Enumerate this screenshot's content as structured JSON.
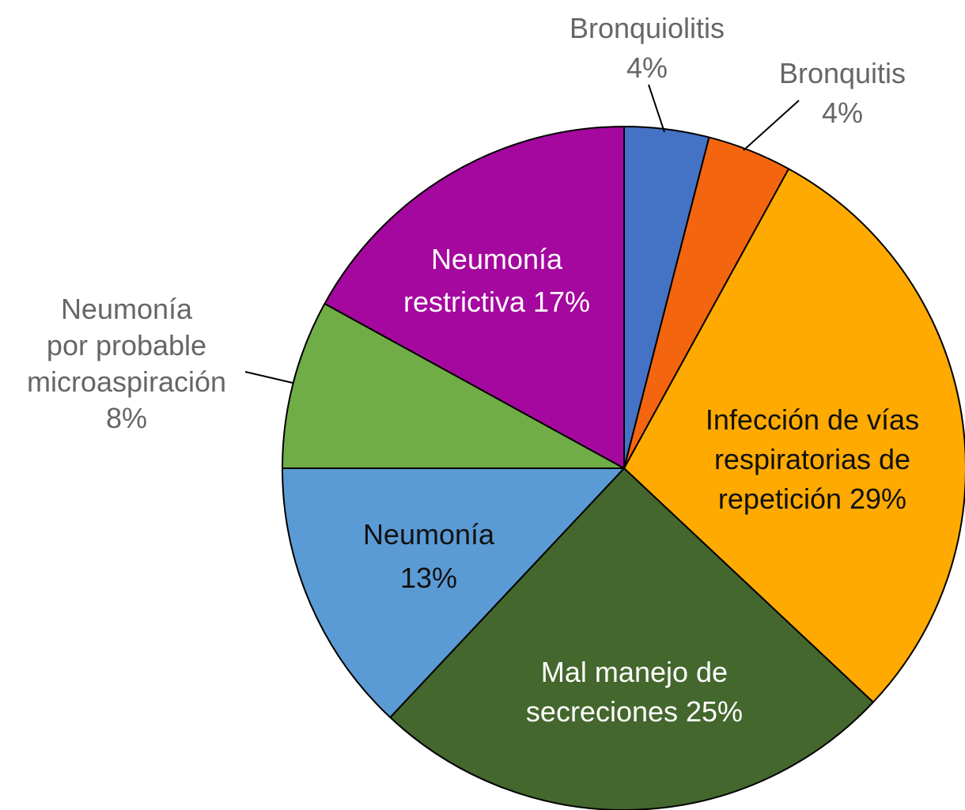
{
  "chart_data": {
    "type": "pie",
    "title": "",
    "slices": [
      {
        "lines": [
          "Bronquiolitis",
          "4%"
        ],
        "label": "Bronquiolitis",
        "value": 4,
        "color": "#4472c4",
        "text_color": "outside"
      },
      {
        "lines": [
          "Bronquitis",
          "4%"
        ],
        "label": "Bronquitis",
        "value": 4,
        "color": "#f4650f",
        "text_color": "outside"
      },
      {
        "lines": [
          "Infección de vías",
          "respiratorias de",
          "repetición 29%"
        ],
        "label": "Infección de vías respiratorias de repetición",
        "value": 29,
        "color": "#ffaa00",
        "text_color": "dark"
      },
      {
        "lines": [
          "Mal manejo de",
          "secreciones 25%"
        ],
        "label": "Mal manejo de secreciones",
        "value": 25,
        "color": "#44672d",
        "text_color": "light"
      },
      {
        "lines": [
          "Neumonía",
          "13%"
        ],
        "label": "Neumonía",
        "value": 13,
        "color": "#5b9bd5",
        "text_color": "dark"
      },
      {
        "lines": [
          "Neumonía",
          "por probable",
          "microaspiración",
          "8%"
        ],
        "label": "Neumonía por probable microaspiración",
        "value": 8,
        "color": "#70ad47",
        "text_color": "outside"
      },
      {
        "lines": [
          "Neumonía",
          "restrictiva 17%"
        ],
        "label": "Neumonía restrictiva",
        "value": 17,
        "color": "#a5089e",
        "text_color": "light"
      }
    ]
  }
}
